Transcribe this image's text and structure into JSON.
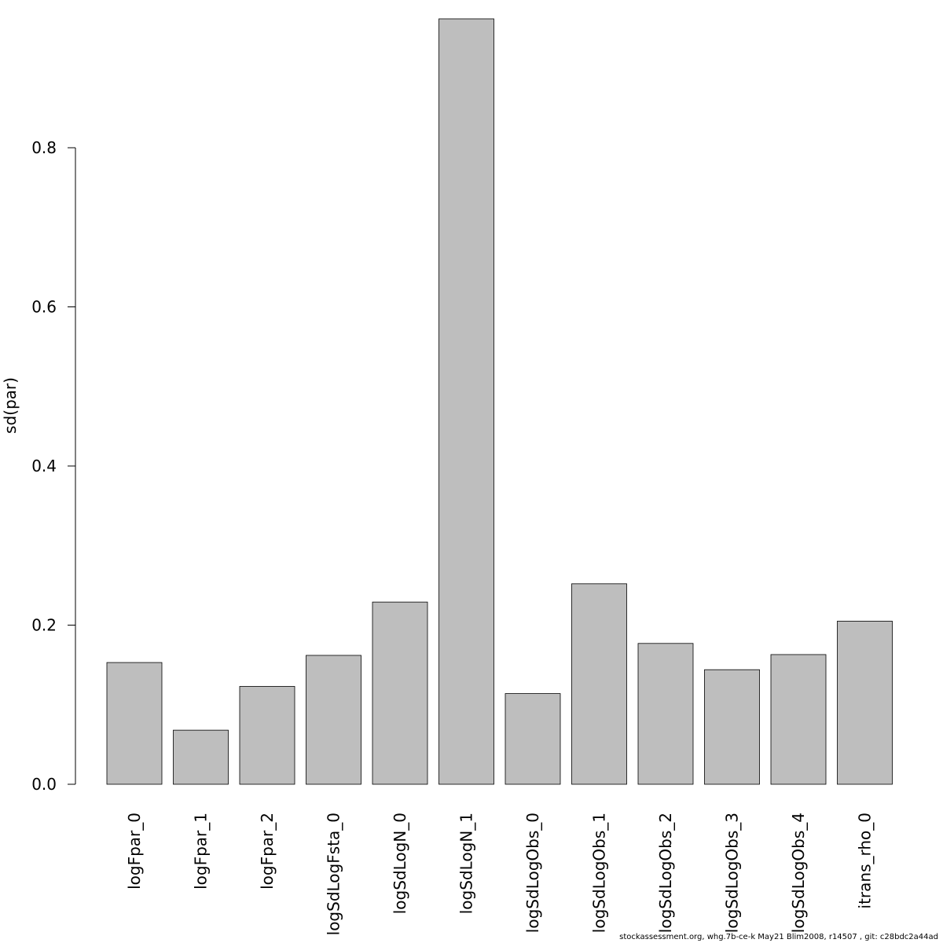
{
  "chart_data": {
    "type": "bar",
    "title": "",
    "xlabel": "",
    "ylabel": "sd(par)",
    "ylim": [
      0,
      0.96
    ],
    "yticks": [
      "0.0",
      "0.2",
      "0.4",
      "0.6",
      "0.8"
    ],
    "ytick_values": [
      0.0,
      0.2,
      0.4,
      0.6,
      0.8
    ],
    "categories": [
      "logFpar_0",
      "logFpar_1",
      "logFpar_2",
      "logSdLogFsta_0",
      "logSdLogN_0",
      "logSdLogN_1",
      "logSdLogObs_0",
      "logSdLogObs_1",
      "logSdLogObs_2",
      "logSdLogObs_3",
      "logSdLogObs_4",
      "itrans_rho_0"
    ],
    "values": [
      0.153,
      0.068,
      0.123,
      0.162,
      0.229,
      0.962,
      0.114,
      0.252,
      0.177,
      0.144,
      0.163,
      0.205
    ],
    "bar_color": "#bebebe",
    "grid": false,
    "legend": "none"
  },
  "footer": "stockassessment.org, whg.7b-ce-k  May21  Blim2008, r14507 , git: c28bdc2a44ad"
}
